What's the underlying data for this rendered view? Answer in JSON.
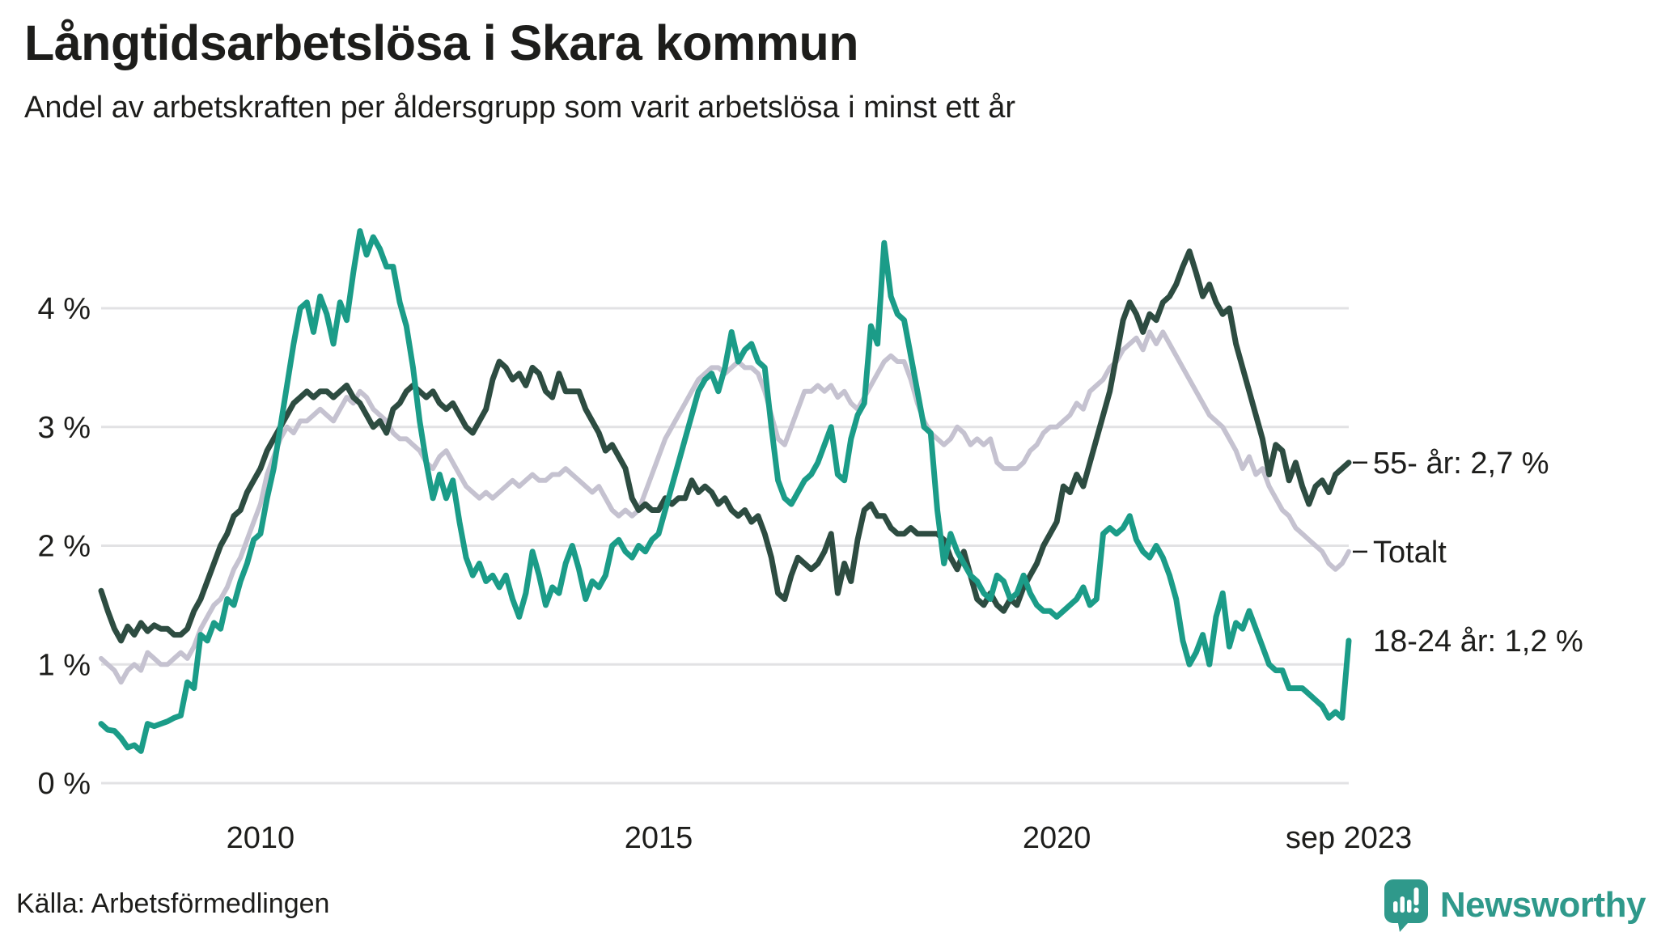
{
  "header": {
    "title": "Långtidsarbetslösa i Skara kommun",
    "subtitle": "Andel av arbetskraften per åldersgrupp som varit arbetslösa i minst ett år"
  },
  "footer": {
    "source": "Källa: Arbetsförmedlingen",
    "brand": "Newsworthy",
    "brand_color": "#2f998b"
  },
  "colors": {
    "background": "#ffffff",
    "text": "#1d1d1b",
    "gridline": "#e2e2e4",
    "series_18_24": "#1b9c88",
    "series_55": "#2d4c41",
    "series_total": "#c5c2d0"
  },
  "chart_data": {
    "type": "line",
    "title": "Långtidsarbetslösa i Skara kommun",
    "subtitle": "Andel av arbetskraften per åldersgrupp som varit arbetslösa i minst ett år",
    "unit": "%",
    "grid": true,
    "x_axis": {
      "range": [
        2008.0,
        2023.6667
      ],
      "ticks": [
        {
          "x": 2010,
          "label": "2010"
        },
        {
          "x": 2015,
          "label": "2015"
        },
        {
          "x": 2020,
          "label": "2020"
        },
        {
          "x": 2023.6667,
          "label": "sep 2023"
        }
      ]
    },
    "y_axis": {
      "range": [
        0,
        4.8
      ],
      "ticks": [
        {
          "v": 0,
          "label": "0 %"
        },
        {
          "v": 1,
          "label": "1 %"
        },
        {
          "v": 2,
          "label": "2 %"
        },
        {
          "v": 3,
          "label": "3 %"
        },
        {
          "v": 4,
          "label": "4 %"
        }
      ]
    },
    "sampling": {
      "start_year": 2008,
      "points_per_year": 12,
      "last_month_label": "sep 2023"
    },
    "series": [
      {
        "name": "Totalt",
        "color": "#c5c2d0",
        "stroke_width": 6,
        "values": [
          1.05,
          1.0,
          0.95,
          0.85,
          0.95,
          1.0,
          0.95,
          1.1,
          1.05,
          1.0,
          1.0,
          1.05,
          1.1,
          1.05,
          1.15,
          1.3,
          1.4,
          1.5,
          1.55,
          1.65,
          1.8,
          1.9,
          2.05,
          2.2,
          2.35,
          2.6,
          2.75,
          2.9,
          3.0,
          2.95,
          3.05,
          3.05,
          3.1,
          3.15,
          3.1,
          3.05,
          3.15,
          3.25,
          3.2,
          3.3,
          3.25,
          3.15,
          3.1,
          3.05,
          2.95,
          2.9,
          2.9,
          2.85,
          2.8,
          2.7,
          2.65,
          2.75,
          2.8,
          2.7,
          2.6,
          2.5,
          2.45,
          2.4,
          2.45,
          2.4,
          2.45,
          2.5,
          2.55,
          2.5,
          2.55,
          2.6,
          2.55,
          2.55,
          2.6,
          2.6,
          2.65,
          2.6,
          2.55,
          2.5,
          2.45,
          2.5,
          2.4,
          2.3,
          2.25,
          2.3,
          2.25,
          2.3,
          2.45,
          2.6,
          2.75,
          2.9,
          3.0,
          3.1,
          3.2,
          3.3,
          3.4,
          3.45,
          3.5,
          3.5,
          3.45,
          3.5,
          3.55,
          3.5,
          3.5,
          3.45,
          3.3,
          3.1,
          2.9,
          2.85,
          3.0,
          3.15,
          3.3,
          3.3,
          3.35,
          3.3,
          3.35,
          3.25,
          3.3,
          3.2,
          3.15,
          3.25,
          3.35,
          3.45,
          3.55,
          3.6,
          3.55,
          3.55,
          3.4,
          3.2,
          3.05,
          2.95,
          2.9,
          2.85,
          2.9,
          3.0,
          2.95,
          2.85,
          2.9,
          2.85,
          2.9,
          2.7,
          2.65,
          2.65,
          2.65,
          2.7,
          2.8,
          2.85,
          2.95,
          3.0,
          3.0,
          3.05,
          3.1,
          3.2,
          3.15,
          3.3,
          3.35,
          3.4,
          3.5,
          3.55,
          3.65,
          3.7,
          3.75,
          3.65,
          3.8,
          3.7,
          3.8,
          3.7,
          3.6,
          3.5,
          3.4,
          3.3,
          3.2,
          3.1,
          3.05,
          3.0,
          2.9,
          2.8,
          2.65,
          2.75,
          2.6,
          2.65,
          2.5,
          2.4,
          2.3,
          2.25,
          2.15,
          2.1,
          2.05,
          2.0,
          1.95,
          1.85,
          1.8,
          1.85,
          1.95
        ]
      },
      {
        "name": "55- år",
        "color": "#2d4c41",
        "stroke_width": 7,
        "values": [
          1.62,
          1.45,
          1.3,
          1.2,
          1.32,
          1.25,
          1.35,
          1.28,
          1.33,
          1.3,
          1.3,
          1.25,
          1.25,
          1.3,
          1.45,
          1.55,
          1.7,
          1.85,
          2.0,
          2.1,
          2.25,
          2.3,
          2.45,
          2.55,
          2.65,
          2.8,
          2.9,
          3.0,
          3.1,
          3.2,
          3.25,
          3.3,
          3.25,
          3.3,
          3.3,
          3.25,
          3.3,
          3.35,
          3.25,
          3.2,
          3.1,
          3.0,
          3.05,
          2.95,
          3.15,
          3.2,
          3.3,
          3.35,
          3.3,
          3.25,
          3.3,
          3.2,
          3.15,
          3.2,
          3.1,
          3.0,
          2.95,
          3.05,
          3.15,
          3.4,
          3.55,
          3.5,
          3.4,
          3.45,
          3.35,
          3.5,
          3.45,
          3.3,
          3.25,
          3.45,
          3.3,
          3.3,
          3.3,
          3.15,
          3.05,
          2.95,
          2.8,
          2.85,
          2.75,
          2.65,
          2.4,
          2.3,
          2.35,
          2.3,
          2.3,
          2.4,
          2.35,
          2.4,
          2.4,
          2.55,
          2.45,
          2.5,
          2.45,
          2.35,
          2.4,
          2.3,
          2.25,
          2.3,
          2.2,
          2.25,
          2.1,
          1.9,
          1.6,
          1.55,
          1.75,
          1.9,
          1.85,
          1.8,
          1.85,
          1.95,
          2.1,
          1.6,
          1.85,
          1.7,
          2.05,
          2.3,
          2.35,
          2.25,
          2.25,
          2.15,
          2.1,
          2.1,
          2.15,
          2.1,
          2.1,
          2.1,
          2.1,
          2.05,
          1.9,
          1.8,
          1.95,
          1.75,
          1.55,
          1.5,
          1.6,
          1.5,
          1.45,
          1.55,
          1.5,
          1.65,
          1.75,
          1.85,
          2.0,
          2.1,
          2.2,
          2.5,
          2.45,
          2.6,
          2.5,
          2.7,
          2.9,
          3.1,
          3.3,
          3.6,
          3.9,
          4.05,
          3.95,
          3.8,
          3.95,
          3.9,
          4.05,
          4.1,
          4.2,
          4.35,
          4.48,
          4.3,
          4.1,
          4.2,
          4.05,
          3.95,
          4.0,
          3.7,
          3.5,
          3.3,
          3.1,
          2.9,
          2.6,
          2.85,
          2.8,
          2.55,
          2.7,
          2.5,
          2.35,
          2.5,
          2.55,
          2.45,
          2.6,
          2.65,
          2.7
        ]
      },
      {
        "name": "18-24 år",
        "color": "#1b9c88",
        "stroke_width": 7,
        "values": [
          0.5,
          0.45,
          0.44,
          0.38,
          0.3,
          0.32,
          0.27,
          0.5,
          0.48,
          0.5,
          0.52,
          0.55,
          0.57,
          0.85,
          0.8,
          1.25,
          1.2,
          1.35,
          1.3,
          1.55,
          1.5,
          1.7,
          1.85,
          2.05,
          2.1,
          2.4,
          2.65,
          3.0,
          3.35,
          3.7,
          4.0,
          4.05,
          3.8,
          4.1,
          3.95,
          3.7,
          4.05,
          3.9,
          4.3,
          4.65,
          4.45,
          4.6,
          4.5,
          4.35,
          4.35,
          4.05,
          3.85,
          3.5,
          3.05,
          2.7,
          2.4,
          2.6,
          2.4,
          2.55,
          2.2,
          1.9,
          1.75,
          1.85,
          1.7,
          1.75,
          1.65,
          1.75,
          1.55,
          1.4,
          1.6,
          1.95,
          1.75,
          1.5,
          1.65,
          1.6,
          1.85,
          2.0,
          1.8,
          1.55,
          1.7,
          1.65,
          1.75,
          2.0,
          2.05,
          1.95,
          1.9,
          2.0,
          1.95,
          2.05,
          2.1,
          2.3,
          2.5,
          2.7,
          2.9,
          3.1,
          3.3,
          3.4,
          3.45,
          3.3,
          3.5,
          3.8,
          3.55,
          3.65,
          3.7,
          3.55,
          3.5,
          3.0,
          2.55,
          2.4,
          2.35,
          2.45,
          2.55,
          2.6,
          2.7,
          2.85,
          3.0,
          2.6,
          2.55,
          2.9,
          3.1,
          3.2,
          3.85,
          3.7,
          4.55,
          4.1,
          3.95,
          3.9,
          3.6,
          3.3,
          3.0,
          2.95,
          2.3,
          1.85,
          2.1,
          1.95,
          1.85,
          1.75,
          1.7,
          1.6,
          1.55,
          1.75,
          1.7,
          1.55,
          1.6,
          1.75,
          1.6,
          1.5,
          1.45,
          1.45,
          1.4,
          1.45,
          1.5,
          1.55,
          1.65,
          1.5,
          1.55,
          2.1,
          2.15,
          2.1,
          2.15,
          2.25,
          2.05,
          1.95,
          1.9,
          2.0,
          1.9,
          1.75,
          1.55,
          1.2,
          1.0,
          1.1,
          1.25,
          1.0,
          1.4,
          1.6,
          1.15,
          1.35,
          1.3,
          1.45,
          1.3,
          1.15,
          1.0,
          0.95,
          0.95,
          0.8,
          0.8,
          0.8,
          0.75,
          0.7,
          0.65,
          0.55,
          0.6,
          0.55,
          1.2
        ]
      }
    ],
    "annotations": [
      {
        "label": "55- år: 2,7 %",
        "value": 2.7,
        "dash": true
      },
      {
        "label": "Totalt",
        "value": 1.95,
        "dash": true
      },
      {
        "label": "18-24 år: 1,2 %",
        "value": 1.2,
        "dash": false
      }
    ]
  }
}
